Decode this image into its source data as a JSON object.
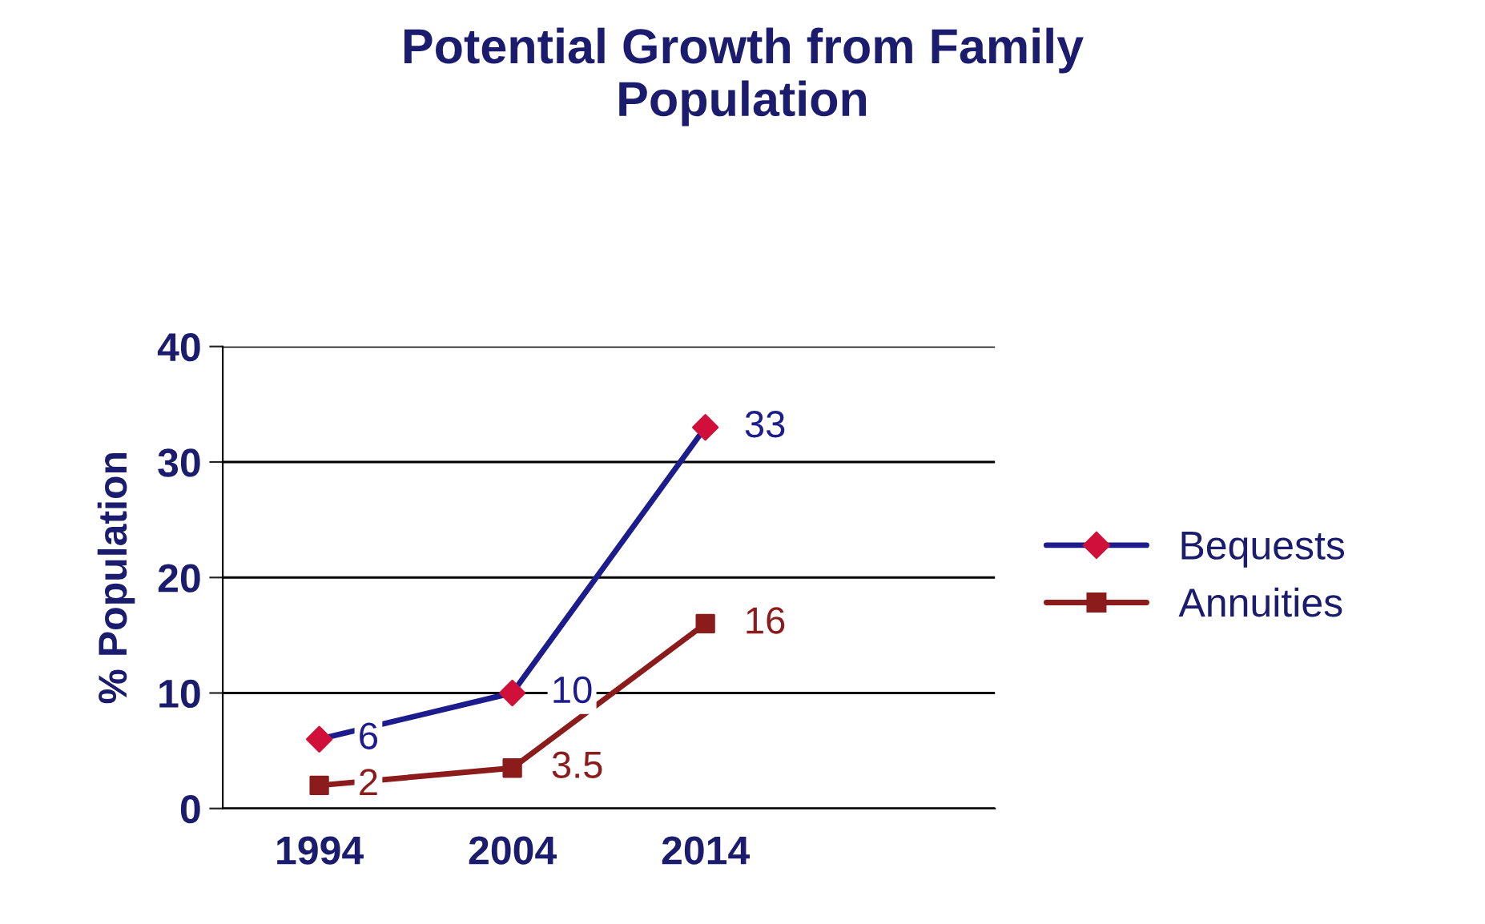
{
  "chart_data": {
    "type": "line",
    "title": "Potential Growth from Family\nPopulation",
    "ylabel": "% Population",
    "categories": [
      "1994",
      "2004",
      "2014",
      null
    ],
    "series": [
      {
        "name": "Bequests",
        "color": "#1c1c8c",
        "marker": "diamond",
        "values": [
          6,
          10,
          33,
          null
        ]
      },
      {
        "name": "Annuities",
        "color": "#8c1c1c",
        "marker": "square",
        "values": [
          2,
          3.5,
          16,
          null
        ]
      }
    ],
    "ylim": [
      0,
      40
    ],
    "yticks": [
      0,
      10,
      20,
      30,
      40
    ],
    "grid": "y",
    "legend": "right",
    "data_labels": true,
    "line_style": "solid"
  }
}
